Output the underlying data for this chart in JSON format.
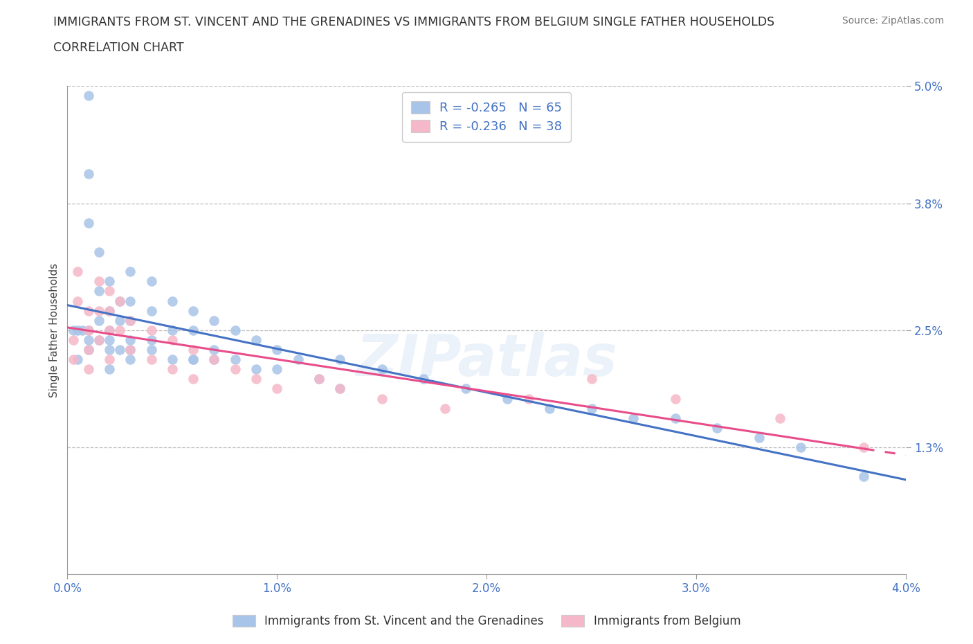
{
  "title_line1": "IMMIGRANTS FROM ST. VINCENT AND THE GRENADINES VS IMMIGRANTS FROM BELGIUM SINGLE FATHER HOUSEHOLDS",
  "title_line2": "CORRELATION CHART",
  "source_text": "Source: ZipAtlas.com",
  "watermark": "ZIPatlas",
  "ylabel": "Single Father Households",
  "xmin": 0.0,
  "xmax": 0.04,
  "ymin": 0.0,
  "ymax": 0.05,
  "ytick_vals": [
    0.013,
    0.025,
    0.038,
    0.05
  ],
  "ytick_labels": [
    "1.3%",
    "2.5%",
    "3.8%",
    "5.0%"
  ],
  "xtick_vals": [
    0.0,
    0.01,
    0.02,
    0.03,
    0.04
  ],
  "xtick_labels": [
    "0.0%",
    "1.0%",
    "2.0%",
    "3.0%",
    "4.0%"
  ],
  "blue_color": "#a8c4e8",
  "pink_color": "#f5b8c8",
  "blue_line_color": "#4472C4",
  "pink_line_color": "#E84D8A",
  "blue_R": -0.265,
  "blue_N": 65,
  "pink_R": -0.236,
  "pink_N": 38,
  "legend_label_blue": "Immigrants from St. Vincent and the Grenadines",
  "legend_label_pink": "Immigrants from Belgium",
  "blue_scatter_x": [
    0.0005,
    0.0005,
    0.001,
    0.001,
    0.001,
    0.001,
    0.001,
    0.0015,
    0.0015,
    0.0015,
    0.0015,
    0.002,
    0.002,
    0.002,
    0.002,
    0.002,
    0.0025,
    0.0025,
    0.0025,
    0.003,
    0.003,
    0.003,
    0.003,
    0.003,
    0.004,
    0.004,
    0.004,
    0.005,
    0.005,
    0.005,
    0.006,
    0.006,
    0.006,
    0.007,
    0.007,
    0.008,
    0.008,
    0.009,
    0.01,
    0.01,
    0.011,
    0.013,
    0.013,
    0.015,
    0.017,
    0.019,
    0.021,
    0.023,
    0.025,
    0.027,
    0.029,
    0.031,
    0.033,
    0.035,
    0.038,
    0.0003,
    0.0007,
    0.001,
    0.002,
    0.003,
    0.004,
    0.006,
    0.007,
    0.009,
    0.012
  ],
  "blue_scatter_y": [
    0.025,
    0.022,
    0.049,
    0.041,
    0.036,
    0.025,
    0.023,
    0.033,
    0.029,
    0.026,
    0.024,
    0.03,
    0.027,
    0.025,
    0.023,
    0.021,
    0.028,
    0.026,
    0.023,
    0.031,
    0.028,
    0.026,
    0.024,
    0.022,
    0.03,
    0.027,
    0.024,
    0.028,
    0.025,
    0.022,
    0.027,
    0.025,
    0.022,
    0.026,
    0.023,
    0.025,
    0.022,
    0.024,
    0.023,
    0.021,
    0.022,
    0.022,
    0.019,
    0.021,
    0.02,
    0.019,
    0.018,
    0.017,
    0.017,
    0.016,
    0.016,
    0.015,
    0.014,
    0.013,
    0.01,
    0.025,
    0.025,
    0.024,
    0.024,
    0.023,
    0.023,
    0.022,
    0.022,
    0.021,
    0.02
  ],
  "pink_scatter_x": [
    0.0003,
    0.0003,
    0.0005,
    0.0005,
    0.001,
    0.001,
    0.001,
    0.001,
    0.0015,
    0.0015,
    0.0015,
    0.002,
    0.002,
    0.002,
    0.002,
    0.0025,
    0.0025,
    0.003,
    0.003,
    0.004,
    0.004,
    0.005,
    0.005,
    0.006,
    0.006,
    0.007,
    0.008,
    0.009,
    0.01,
    0.012,
    0.013,
    0.015,
    0.018,
    0.022,
    0.025,
    0.029,
    0.034,
    0.038
  ],
  "pink_scatter_y": [
    0.024,
    0.022,
    0.031,
    0.028,
    0.027,
    0.025,
    0.023,
    0.021,
    0.03,
    0.027,
    0.024,
    0.029,
    0.027,
    0.025,
    0.022,
    0.028,
    0.025,
    0.026,
    0.023,
    0.025,
    0.022,
    0.024,
    0.021,
    0.023,
    0.02,
    0.022,
    0.021,
    0.02,
    0.019,
    0.02,
    0.019,
    0.018,
    0.017,
    0.018,
    0.02,
    0.018,
    0.016,
    0.013
  ]
}
